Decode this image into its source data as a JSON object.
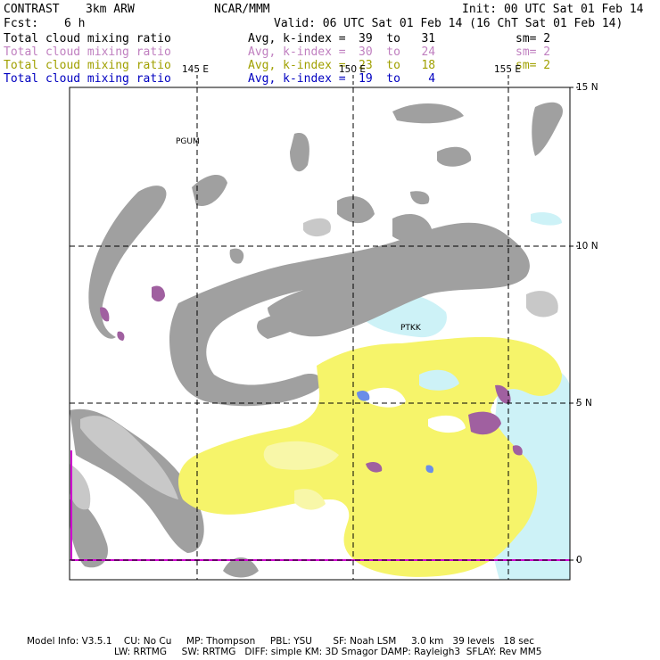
{
  "header": {
    "model": "CONTRAST",
    "run": "3km ARW",
    "center": "NCAR/MMM",
    "init": "Init: 00 UTC Sat 01 Feb 14",
    "fcst_label": "Fcst:",
    "fcst_value": "6 h",
    "valid": "Valid: 06 UTC Sat 01 Feb 14 (16 ChT Sat 01 Feb 14)"
  },
  "fields": [
    {
      "name": "Total cloud mixing ratio",
      "avg": "Avg, k-index =",
      "range": "39  to   31",
      "sm": "sm= 2",
      "color": "#000000"
    },
    {
      "name": "Total cloud mixing ratio",
      "avg": "Avg, k-index =",
      "range": "30  to   24",
      "sm": "sm= 2",
      "color": "#c080c0"
    },
    {
      "name": "Total cloud mixing ratio",
      "avg": "Avg, k-index =",
      "range": "23  to   18",
      "sm": "sm= 2",
      "color": "#a0a000"
    },
    {
      "name": "Total cloud mixing ratio",
      "avg": "Avg, k-index =",
      "range": "19  to    4",
      "sm": "",
      "color": "#0000c0"
    }
  ],
  "axes": {
    "lon_labels": [
      "145 E",
      "150 E",
      "155 E"
    ],
    "lat_labels": [
      "15 N",
      "10 N",
      "5 N",
      "0"
    ]
  },
  "stations": [
    {
      "id": "PGUM"
    },
    {
      "id": "PTKK"
    }
  ],
  "footer": {
    "line1": "Model Info: V3.5.1    CU: No Cu     MP: Thompson     PBL: YSU       SF: Noah LSM     3.0 km   39 levels   18 sec",
    "line2": "LW: RRTMG     SW: RRTMG   DIFF: simple KM: 3D Smagor DAMP: Rayleigh3  SFLAY: Rev MM5"
  },
  "colors": {
    "gray_cloud": "#9a9a9a",
    "light_gray": "#c8c8c8",
    "purple_cloud": "#a060a0",
    "yellow_cloud": "#f6f46a",
    "cyan_cloud": "#cdf2f7",
    "blue_cloud": "#6a8ee8",
    "grid": "#000000",
    "magenta_line": "#d000d0"
  }
}
